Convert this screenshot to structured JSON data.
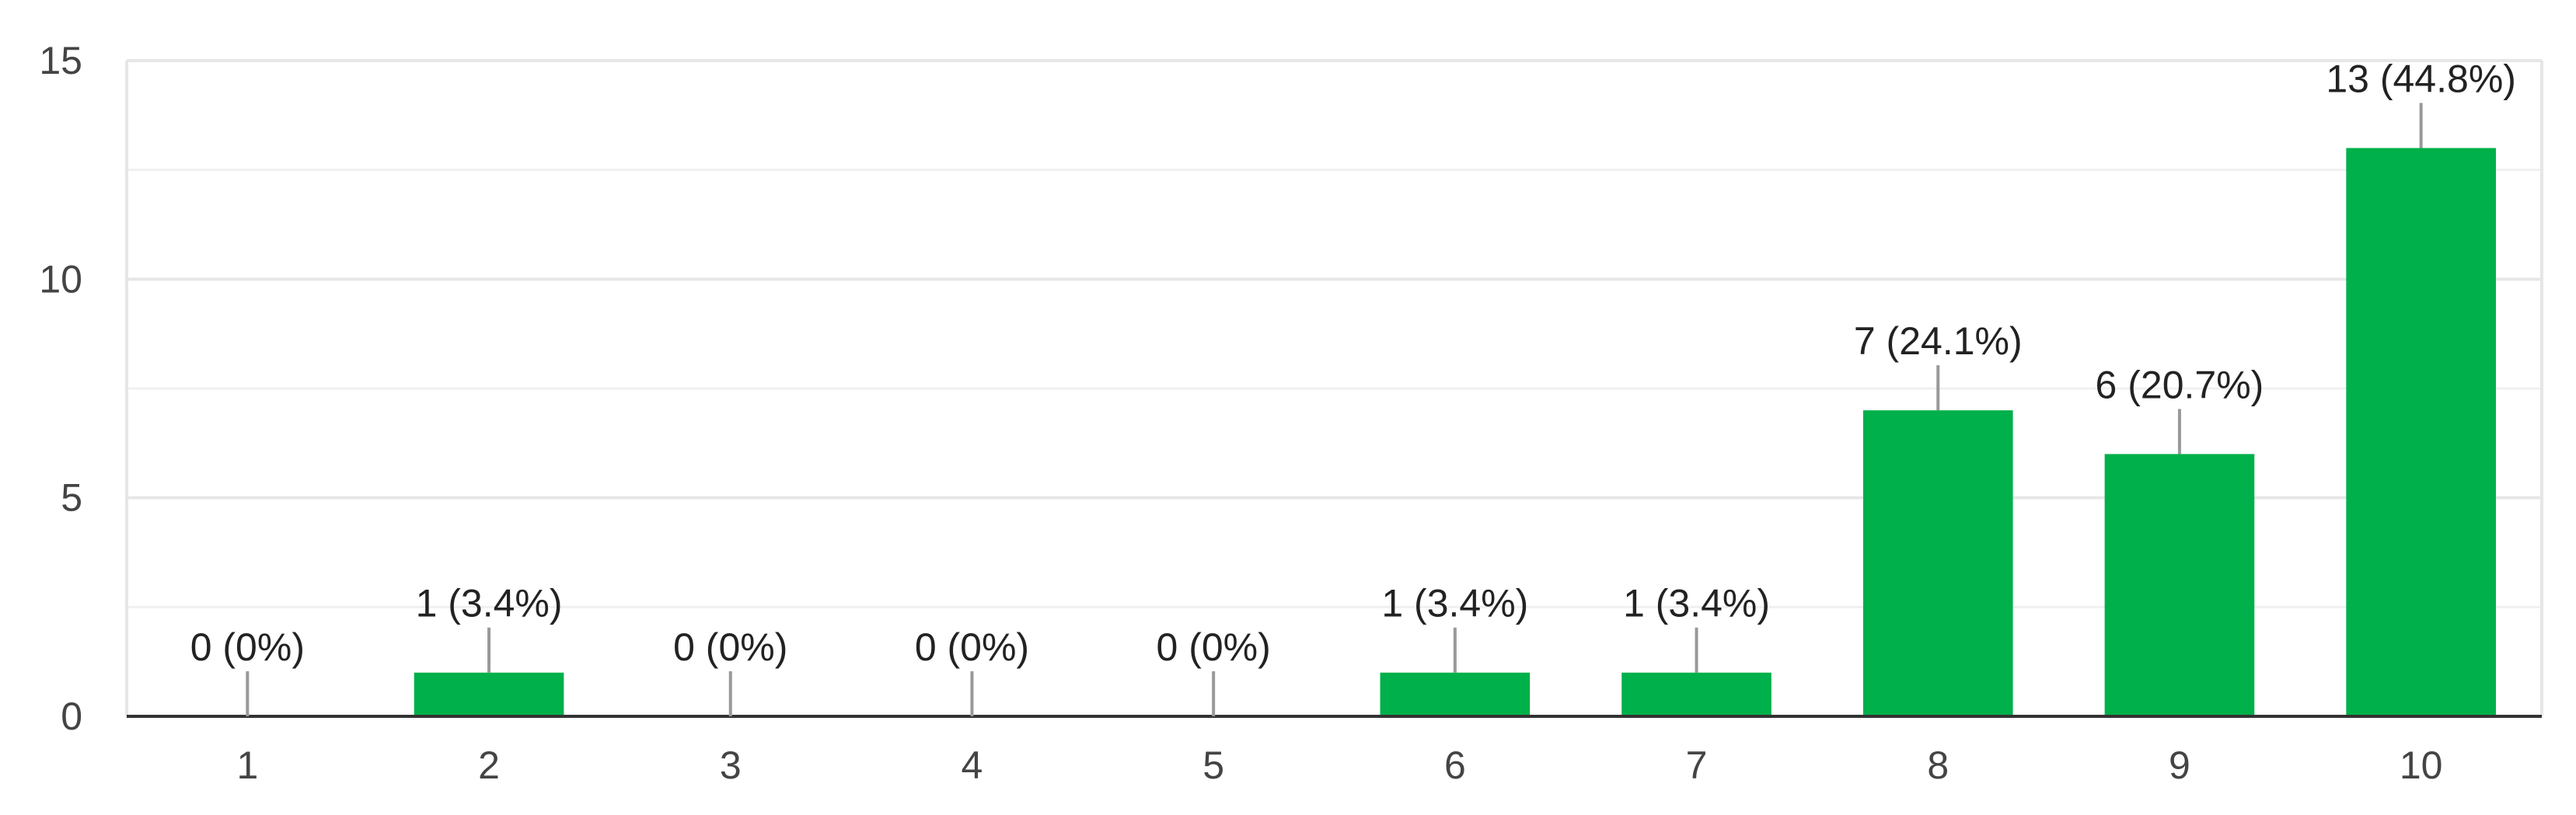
{
  "colors": {
    "bar": "#00b04a",
    "grid_major": "#e6e6e6",
    "grid_minor": "#f0f0f0",
    "axis": "#333333",
    "leader": "#999999",
    "tick_text": "#444444",
    "label_text": "#222222"
  },
  "chart_data": {
    "type": "bar",
    "categories": [
      "1",
      "2",
      "3",
      "4",
      "5",
      "6",
      "7",
      "8",
      "9",
      "10"
    ],
    "values": [
      0,
      1,
      0,
      0,
      0,
      1,
      1,
      7,
      6,
      13
    ],
    "data_labels": [
      "0 (0%)",
      "1 (3.4%)",
      "0 (0%)",
      "0 (0%)",
      "0 (0%)",
      "1 (3.4%)",
      "1 (3.4%)",
      "7 (24.1%)",
      "6 (20.7%)",
      "13 (44.8%)"
    ],
    "yticks": [
      0,
      5,
      10,
      15
    ],
    "ylim": [
      0,
      15
    ],
    "grid": true,
    "legend": "none"
  }
}
